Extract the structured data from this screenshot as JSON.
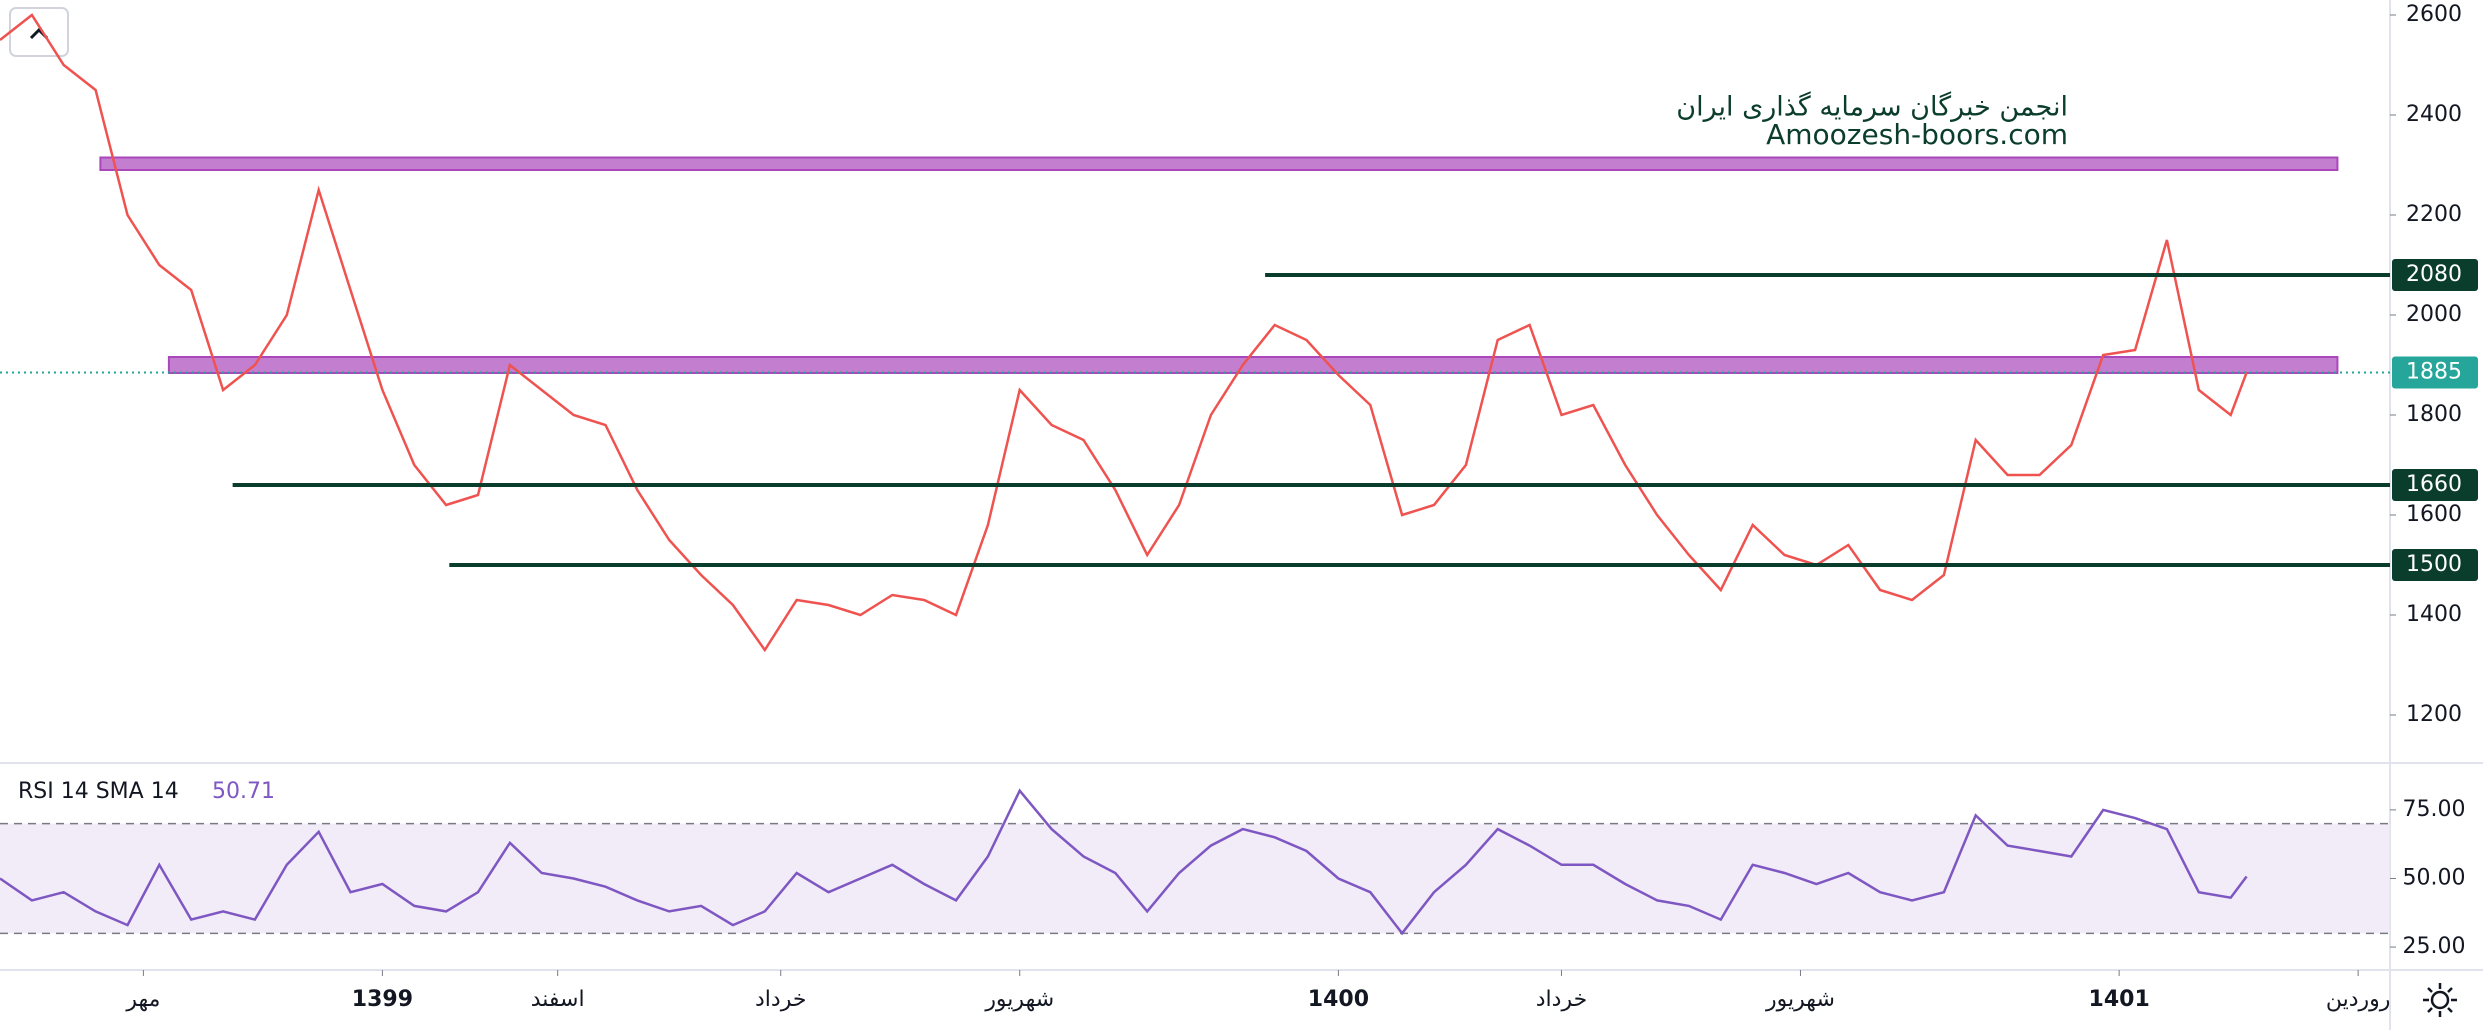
{
  "watermark": {
    "line1": "انجمن خبرگان سرمایه گذاری ایران",
    "line2": "Amoozesh-boors.com"
  },
  "chart_data": [
    {
      "type": "line",
      "x": [
        0,
        2,
        4,
        6,
        8,
        10,
        12,
        14,
        16,
        18,
        20,
        22,
        24,
        26,
        28,
        30,
        32,
        34,
        36,
        38,
        40,
        42,
        44,
        46,
        48,
        50,
        52,
        54,
        56,
        58,
        60,
        62,
        64,
        66,
        68,
        70,
        72,
        74,
        76,
        78,
        80,
        82,
        84,
        86,
        88,
        90,
        92,
        94,
        96,
        98,
        100,
        102,
        104,
        106,
        108,
        110,
        112,
        114,
        116,
        118,
        120,
        122,
        124,
        126,
        128,
        130,
        132,
        134,
        136,
        138,
        140,
        141
      ],
      "values": [
        2550,
        2600,
        2500,
        2450,
        2200,
        2100,
        2050,
        1850,
        1900,
        2000,
        2250,
        2050,
        1850,
        1700,
        1620,
        1640,
        1900,
        1850,
        1800,
        1780,
        1650,
        1550,
        1480,
        1420,
        1330,
        1430,
        1420,
        1400,
        1440,
        1430,
        1400,
        1580,
        1850,
        1780,
        1750,
        1650,
        1520,
        1620,
        1800,
        1900,
        1980,
        1950,
        1880,
        1820,
        1600,
        1620,
        1700,
        1950,
        1980,
        1800,
        1820,
        1700,
        1600,
        1520,
        1450,
        1580,
        1520,
        1500,
        1540,
        1450,
        1430,
        1480,
        1750,
        1680,
        1680,
        1740,
        1920,
        1930,
        2150,
        1850,
        1800,
        1885
      ],
      "color": "#ef5350",
      "xlim": [
        0,
        150
      ],
      "ylim": [
        1110,
        2630
      ],
      "yticks": [
        1200,
        1400,
        1600,
        1800,
        2000,
        2200,
        2400,
        2600
      ],
      "levels": [
        {
          "value": 2080,
          "from": 79.4
        },
        {
          "value": 1660,
          "from": 14.6
        },
        {
          "value": 1500,
          "from": 28.2
        }
      ],
      "level_color": "#0b3d2c",
      "zones": [
        {
          "range": [
            2290,
            2315
          ],
          "from": 6.3,
          "to": 146.7
        },
        {
          "range": [
            1884,
            1916
          ],
          "from": 10.6,
          "to": 146.7
        }
      ],
      "zone_color": "#ba68c8",
      "last_value": 1885,
      "last_color": "#26a69a"
    },
    {
      "type": "line",
      "x": [
        0,
        2,
        4,
        6,
        8,
        10,
        12,
        14,
        16,
        18,
        20,
        22,
        24,
        26,
        28,
        30,
        32,
        34,
        36,
        38,
        40,
        42,
        44,
        46,
        48,
        50,
        52,
        54,
        56,
        58,
        60,
        62,
        64,
        66,
        68,
        70,
        72,
        74,
        76,
        78,
        80,
        82,
        84,
        86,
        88,
        90,
        92,
        94,
        96,
        98,
        100,
        102,
        104,
        106,
        108,
        110,
        112,
        114,
        116,
        118,
        120,
        122,
        124,
        126,
        128,
        130,
        132,
        134,
        136,
        138,
        140,
        141
      ],
      "values": [
        50,
        42,
        45,
        38,
        33,
        55,
        35,
        38,
        35,
        55,
        67,
        45,
        48,
        40,
        38,
        45,
        63,
        52,
        50,
        47,
        42,
        38,
        40,
        33,
        38,
        52,
        45,
        50,
        55,
        48,
        42,
        58,
        82,
        68,
        58,
        52,
        38,
        52,
        62,
        68,
        65,
        60,
        50,
        45,
        30,
        45,
        55,
        68,
        62,
        55,
        55,
        48,
        42,
        40,
        35,
        55,
        52,
        48,
        52,
        45,
        42,
        45,
        73,
        62,
        60,
        58,
        75,
        72,
        68,
        45,
        43,
        50.71
      ],
      "color": "#7e57c2",
      "indicator": "RSI 14 SMA 14",
      "current_value": 50.71,
      "xlim": [
        0,
        150
      ],
      "ylim": [
        17,
        91
      ],
      "yticks": [
        {
          "value": 75,
          "label": "75.00"
        },
        {
          "value": 50,
          "label": "50.00"
        },
        {
          "value": 25,
          "label": "25.00"
        }
      ],
      "bands": [
        30,
        70
      ],
      "xticks": [
        {
          "value": 9,
          "label": "مهر"
        },
        {
          "value": 24,
          "label": "1399"
        },
        {
          "value": 35,
          "label": "اسفند"
        },
        {
          "value": 49,
          "label": "خرداد"
        },
        {
          "value": 64,
          "label": "شهریور"
        },
        {
          "value": 84,
          "label": "1400"
        },
        {
          "value": 98,
          "label": "خرداد"
        },
        {
          "value": 113,
          "label": "شهریور"
        },
        {
          "value": 133,
          "label": "1401"
        },
        {
          "value": 148,
          "label": "روردین"
        }
      ]
    }
  ]
}
